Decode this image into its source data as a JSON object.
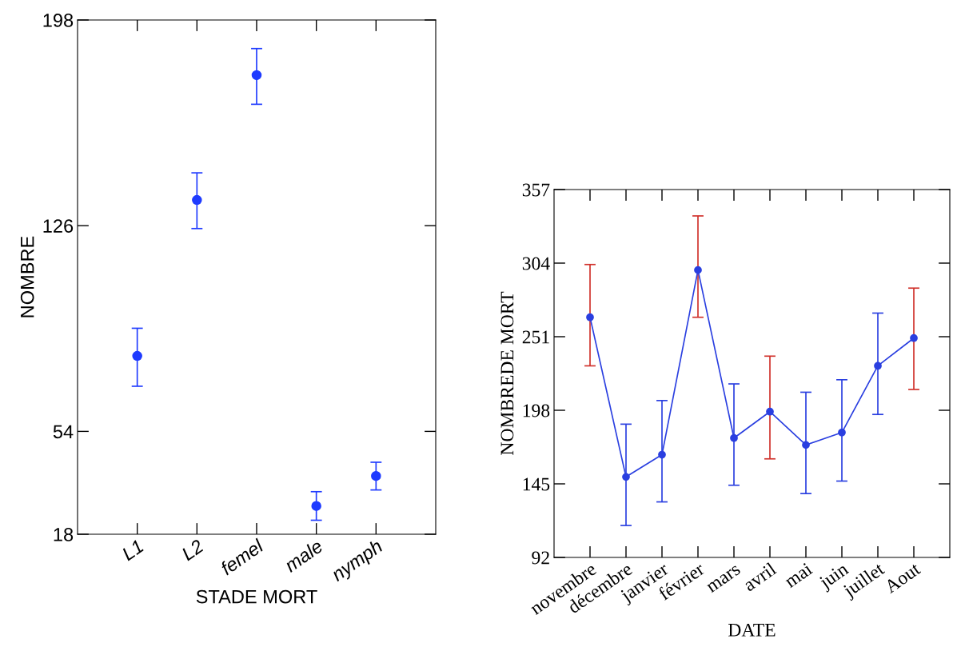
{
  "chart_data": [
    {
      "type": "scatter",
      "xlabel": "STADE MORT",
      "ylabel": "NOMBRE",
      "categories": [
        "L1",
        "L2",
        "femel",
        "male",
        "nymph"
      ],
      "ylim": [
        18,
        198
      ],
      "yticks": [
        18,
        54,
        126,
        198
      ],
      "marker": "circle",
      "series": [
        {
          "color": "#1f3bff",
          "values": [
            80.4,
            135.0,
            178.7,
            27.9,
            38.4
          ],
          "errors": [
            [
              69.8,
              90.1
            ],
            [
              125.0,
              144.5
            ],
            [
              168.5,
              188.0
            ],
            [
              22.9,
              32.9
            ],
            [
              33.5,
              43.2
            ]
          ]
        }
      ]
    },
    {
      "type": "line",
      "xlabel": "DATE",
      "ylabel": "NOMBREDE MORT",
      "categories": [
        "novembre",
        "décembre",
        "janvier",
        "février",
        "mars",
        "avril",
        "mai",
        "juin",
        "juillet",
        "Aout"
      ],
      "ylim": [
        92,
        357
      ],
      "yticks": [
        92,
        145,
        198,
        251,
        304,
        357
      ],
      "marker": "circle",
      "series": [
        {
          "color": "#2a3fe0",
          "values": [
            265,
            150,
            166,
            299,
            178,
            197,
            173,
            182,
            230,
            250
          ],
          "errors": [
            [
              230,
              303
            ],
            [
              115,
              188
            ],
            [
              132,
              205
            ],
            [
              265,
              338
            ],
            [
              144,
              217
            ],
            [
              163,
              237
            ],
            [
              138,
              211
            ],
            [
              147,
              220
            ],
            [
              195,
              268
            ],
            [
              213,
              286
            ]
          ],
          "colors": [
            "#d0302a",
            "#2a3fe0",
            "#2a3fe0",
            "#d0302a",
            "#2a3fe0",
            "#d0302a",
            "#2a3fe0",
            "#2a3fe0",
            "#2a3fe0",
            "#d0302a"
          ]
        }
      ]
    }
  ]
}
